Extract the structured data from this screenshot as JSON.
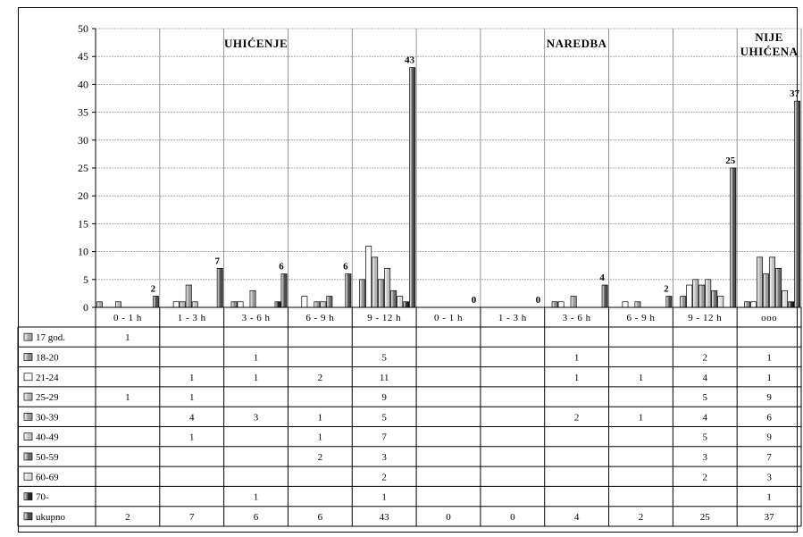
{
  "chart_data": {
    "type": "bar",
    "ylim": [
      0,
      50
    ],
    "yticks": [
      0,
      5,
      10,
      15,
      20,
      25,
      30,
      35,
      40,
      45,
      50
    ],
    "grid": true,
    "legend": "table-below",
    "group_titles": [
      {
        "text": "UHIĆENJE",
        "span": [
          0,
          4
        ]
      },
      {
        "text": "NAREDBA",
        "span": [
          5,
          9
        ]
      },
      {
        "text": "NIJE UHIĆENA",
        "span": [
          10,
          10
        ]
      }
    ],
    "categories": [
      "0 - 1 h",
      "1 - 3 h",
      "3 - 6 h",
      "6 - 9 h",
      "9 - 12 h",
      "0 - 1 h",
      "1 - 3 h",
      "3 - 6 h",
      "6 - 9 h",
      "9 - 12 h",
      "ooo"
    ],
    "series": [
      {
        "name": "17 god.",
        "color": "#a6a6a6",
        "values": [
          1,
          null,
          null,
          null,
          null,
          null,
          null,
          null,
          null,
          null,
          null
        ]
      },
      {
        "name": "18-20",
        "color": "#8c8c8c",
        "values": [
          null,
          null,
          1,
          null,
          5,
          null,
          null,
          1,
          null,
          2,
          1
        ]
      },
      {
        "name": "21-24",
        "color": "#ffffff",
        "values": [
          null,
          1,
          1,
          2,
          11,
          null,
          null,
          1,
          1,
          4,
          1
        ]
      },
      {
        "name": "25-29",
        "color": "#b3b3b3",
        "values": [
          1,
          1,
          null,
          null,
          9,
          null,
          null,
          null,
          null,
          5,
          9
        ]
      },
      {
        "name": "30-39",
        "color": "#999999",
        "values": [
          null,
          4,
          3,
          1,
          5,
          null,
          null,
          2,
          1,
          4,
          6
        ]
      },
      {
        "name": "40-49",
        "color": "#c0c0c0",
        "values": [
          null,
          1,
          null,
          1,
          7,
          null,
          null,
          null,
          null,
          5,
          9
        ]
      },
      {
        "name": "50-59",
        "color": "#6e6e6e",
        "values": [
          null,
          null,
          null,
          2,
          3,
          null,
          null,
          null,
          null,
          3,
          7
        ]
      },
      {
        "name": "60-69",
        "color": "#d9d9d9",
        "values": [
          null,
          null,
          null,
          null,
          2,
          null,
          null,
          null,
          null,
          2,
          3
        ]
      },
      {
        "name": "70-",
        "color": "#262626",
        "values": [
          null,
          null,
          1,
          null,
          1,
          null,
          null,
          null,
          null,
          null,
          1
        ]
      },
      {
        "name": "ukupno",
        "color": "#4d4d4d",
        "values": [
          2,
          7,
          6,
          6,
          43,
          0,
          0,
          4,
          2,
          25,
          37
        ]
      }
    ]
  }
}
